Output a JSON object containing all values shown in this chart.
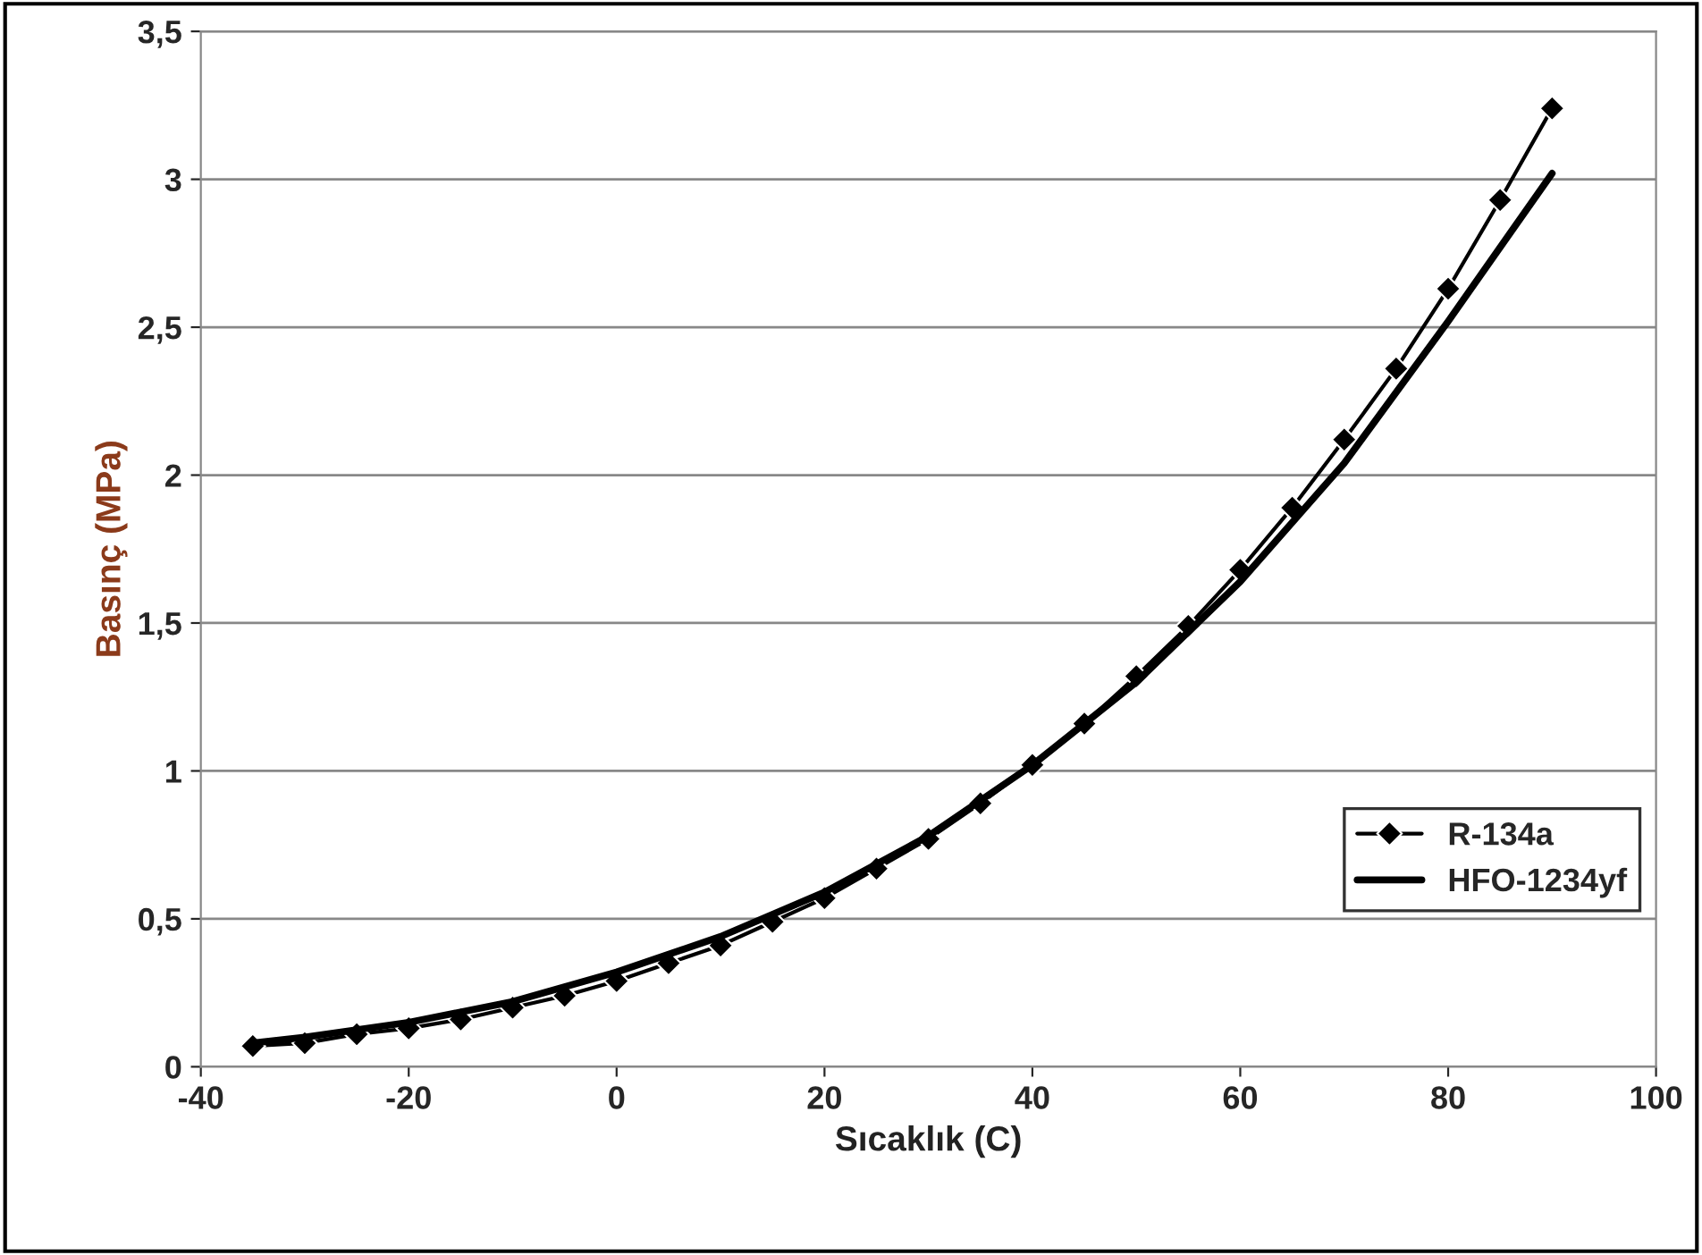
{
  "chart_data": {
    "type": "line",
    "xlabel": "Sıcaklık (C)",
    "ylabel": "Basınç (MPa)",
    "series": [
      {
        "name": "R-134a",
        "color": "#000000",
        "marker": "diamond",
        "x": [
          -35,
          -30,
          -25,
          -20,
          -15,
          -10,
          -5,
          0,
          5,
          10,
          15,
          20,
          25,
          30,
          35,
          40,
          45,
          50,
          55,
          60,
          65,
          70,
          75,
          80,
          85,
          90
        ],
        "values": [
          0.07,
          0.08,
          0.11,
          0.13,
          0.16,
          0.2,
          0.24,
          0.29,
          0.35,
          0.41,
          0.49,
          0.57,
          0.67,
          0.77,
          0.89,
          1.02,
          1.16,
          1.32,
          1.49,
          1.68,
          1.89,
          2.12,
          2.36,
          2.63,
          2.93,
          3.24
        ]
      },
      {
        "name": "HFO-1234yf",
        "color": "#000000",
        "marker": "none",
        "x": [
          -35,
          -30,
          -20,
          -10,
          0,
          10,
          20,
          30,
          40,
          50,
          60,
          70,
          80,
          90
        ],
        "values": [
          0.08,
          0.1,
          0.15,
          0.22,
          0.32,
          0.44,
          0.59,
          0.78,
          1.02,
          1.3,
          1.64,
          2.04,
          2.52,
          3.02
        ]
      }
    ],
    "xlim": [
      -40,
      100
    ],
    "xticks": [
      -40,
      -20,
      0,
      20,
      40,
      60,
      80,
      100
    ],
    "ylim": [
      0,
      3.5
    ],
    "yticks": [
      0,
      {
        "value": 0.5,
        "label": "0,5"
      },
      1,
      {
        "value": 1.5,
        "label": "1,5"
      },
      2,
      {
        "value": 2.5,
        "label": "2,5"
      },
      3,
      {
        "value": 3.5,
        "label": "3,5"
      }
    ],
    "grid": "y",
    "legend": "right"
  }
}
